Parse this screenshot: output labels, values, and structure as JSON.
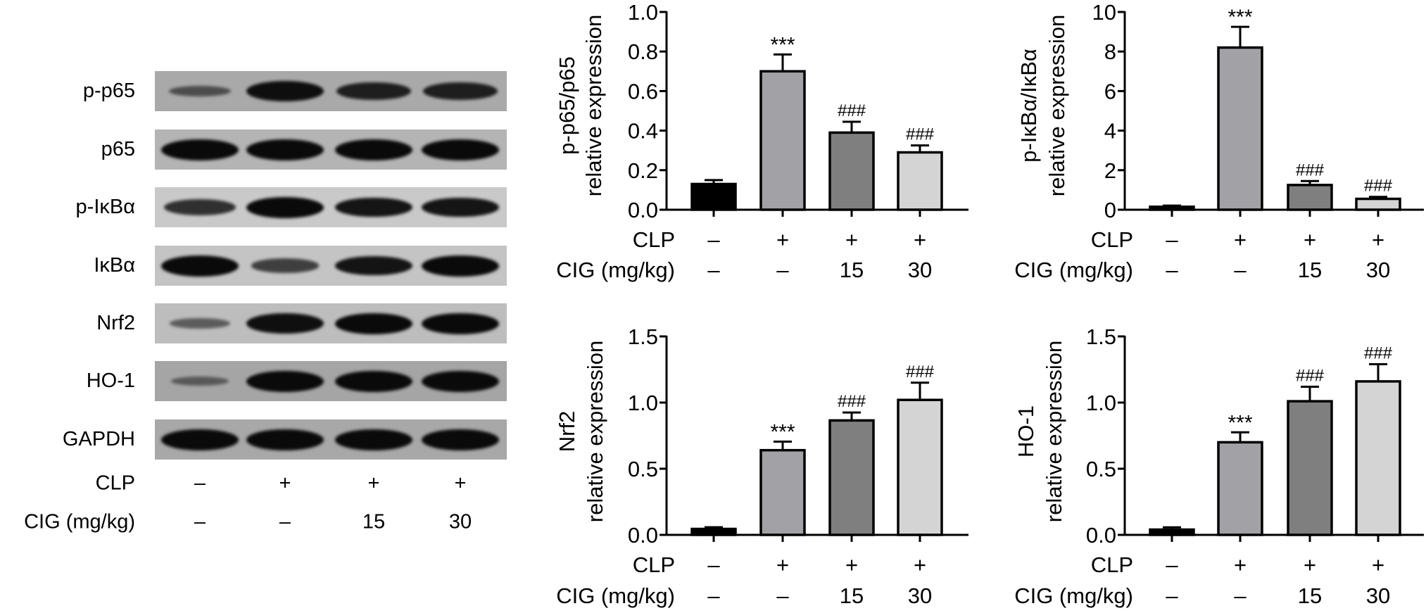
{
  "blot": {
    "rows": [
      {
        "label": "p-p65",
        "background": "#a9a9a9",
        "intensity": [
          0.35,
          0.95,
          0.8,
          0.8
        ]
      },
      {
        "label": "p65",
        "background": "#b4b4b4",
        "intensity": [
          1,
          1,
          1,
          1
        ]
      },
      {
        "label": "p-IκBα",
        "background": "#c9c9c9",
        "intensity": [
          0.7,
          1,
          0.9,
          0.9
        ]
      },
      {
        "label": "IκBα",
        "background": "#c4c4c4",
        "intensity": [
          1,
          0.55,
          0.9,
          1
        ]
      },
      {
        "label": "Nrf2",
        "background": "#bdbdbd",
        "intensity": [
          0.3,
          0.95,
          1,
          1
        ]
      },
      {
        "label": "HO-1",
        "background": "#a5a5a5",
        "intensity": [
          0.22,
          1,
          1,
          1
        ]
      },
      {
        "label": "GAPDH",
        "background": "#a8a8a8",
        "intensity": [
          1,
          1,
          1,
          1
        ]
      }
    ],
    "clp_label": "CLP",
    "cig_label": "CIG (mg/kg)",
    "clp": [
      "–",
      "+",
      "+",
      "+"
    ],
    "cig": [
      "–",
      "–",
      "15",
      "30"
    ]
  },
  "colors": {
    "group_fills": [
      "#000000",
      "#a1a1a6",
      "#7f7f7f",
      "#d4d4d4"
    ],
    "outline": "#000000"
  },
  "chart_data": [
    {
      "type": "bar",
      "ylabel": [
        "p-p65/p65",
        "relative expression"
      ],
      "ylim": [
        0,
        1.0
      ],
      "yticks": [
        "0.0",
        "0.2",
        "0.4",
        "0.6",
        "0.8",
        "1.0"
      ],
      "categories": [
        "CLP– CIG–",
        "CLP+ CIG–",
        "CLP+ CIG15",
        "CLP+ CIG30"
      ],
      "values": [
        0.13,
        0.7,
        0.39,
        0.29
      ],
      "errors": [
        0.02,
        0.085,
        0.055,
        0.035
      ],
      "annotations": [
        "",
        "***",
        "###",
        "###"
      ],
      "clp_label": "CLP",
      "cig_label": "CIG (mg/kg)",
      "clp": [
        "–",
        "+",
        "+",
        "+"
      ],
      "cig": [
        "–",
        "–",
        "15",
        "30"
      ]
    },
    {
      "type": "bar",
      "ylabel": [
        "p-IκBα/IκBα",
        "relative expression"
      ],
      "ylim": [
        0,
        10
      ],
      "yticks": [
        "0",
        "2",
        "4",
        "6",
        "8",
        "10"
      ],
      "categories": [
        "CLP– CIG–",
        "CLP+ CIG–",
        "CLP+ CIG15",
        "CLP+ CIG30"
      ],
      "values": [
        0.15,
        8.2,
        1.25,
        0.55
      ],
      "errors": [
        0.06,
        1.05,
        0.2,
        0.1
      ],
      "annotations": [
        "",
        "***",
        "###",
        "###"
      ],
      "clp_label": "CLP",
      "cig_label": "CIG (mg/kg)",
      "clp": [
        "–",
        "+",
        "+",
        "+"
      ],
      "cig": [
        "–",
        "–",
        "15",
        "30"
      ]
    },
    {
      "type": "bar",
      "ylabel": [
        "Nrf2",
        "relative expression"
      ],
      "ylim": [
        0,
        1.5
      ],
      "yticks": [
        "0.0",
        "0.5",
        "1.0",
        "1.5"
      ],
      "categories": [
        "CLP– CIG–",
        "CLP+ CIG–",
        "CLP+ CIG15",
        "CLP+ CIG30"
      ],
      "values": [
        0.045,
        0.64,
        0.865,
        1.02
      ],
      "errors": [
        0.013,
        0.065,
        0.06,
        0.13
      ],
      "annotations": [
        "",
        "***",
        "###",
        "###"
      ],
      "clp_label": "CLP",
      "cig_label": "CIG (mg/kg)",
      "clp": [
        "–",
        "+",
        "+",
        "+"
      ],
      "cig": [
        "–",
        "–",
        "15",
        "30"
      ]
    },
    {
      "type": "bar",
      "ylabel": [
        "HO-1",
        "relative expression"
      ],
      "ylim": [
        0,
        1.5
      ],
      "yticks": [
        "0.0",
        "0.5",
        "1.0",
        "1.5"
      ],
      "categories": [
        "CLP– CIG–",
        "CLP+ CIG–",
        "CLP+ CIG15",
        "CLP+ CIG30"
      ],
      "values": [
        0.04,
        0.7,
        1.01,
        1.16
      ],
      "errors": [
        0.017,
        0.075,
        0.11,
        0.13
      ],
      "annotations": [
        "",
        "***",
        "###",
        "###"
      ],
      "clp_label": "CLP",
      "cig_label": "CIG (mg/kg)",
      "clp": [
        "–",
        "+",
        "+",
        "+"
      ],
      "cig": [
        "–",
        "–",
        "15",
        "30"
      ]
    }
  ]
}
